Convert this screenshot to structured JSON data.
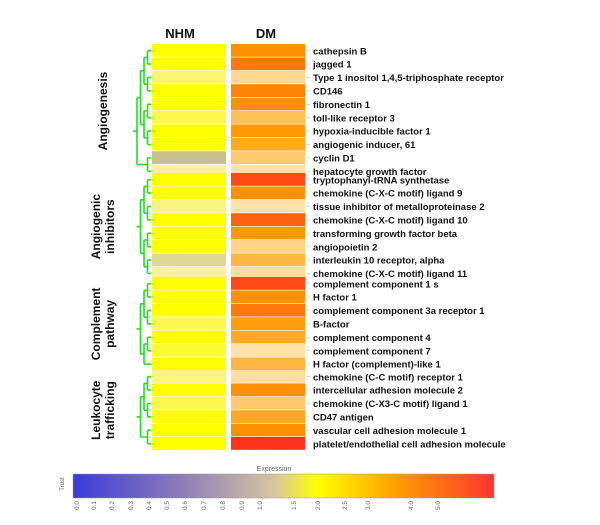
{
  "chart_data": {
    "type": "heatmap",
    "columns": [
      "NHM",
      "DM"
    ],
    "groups": [
      {
        "name": "Angiogenesis",
        "rows": [
          {
            "gene": "cathepsin B",
            "values": [
              1.0,
              3.0
            ]
          },
          {
            "gene": "jagged 1",
            "values": [
              1.0,
              3.5
            ]
          },
          {
            "gene": "Type 1 inositol 1,4,5-triphosphate receptor",
            "values": [
              0.93,
              1.5
            ]
          },
          {
            "gene": "CD146",
            "values": [
              1.0,
              3.2
            ]
          },
          {
            "gene": "fibronectin 1",
            "values": [
              1.0,
              3.0
            ]
          },
          {
            "gene": "toll-like receptor 3",
            "values": [
              0.95,
              2.0
            ]
          },
          {
            "gene": "hypoxia-inducible factor 1",
            "values": [
              1.05,
              2.8
            ]
          },
          {
            "gene": "angiogenic inducer, 61",
            "values": [
              1.0,
              2.5
            ]
          },
          {
            "gene": "cyclin D1",
            "values": [
              0.8,
              1.8
            ]
          },
          {
            "gene": "hepatocyte growth factor",
            "values": [
              0.9,
              1.3
            ]
          }
        ]
      },
      {
        "name": "Angiogenic inhibitors",
        "rows": [
          {
            "gene": "tryptophanyl-tRNA synthetase",
            "values": [
              1.0,
              4.5
            ]
          },
          {
            "gene": "chemokine (C-X-C motif) ligand 9",
            "values": [
              1.0,
              3.0
            ]
          },
          {
            "gene": "tissue inhibitor of metalloproteinase 2",
            "values": [
              0.92,
              1.3
            ]
          },
          {
            "gene": "chemokine (C-X-C motif) ligand 10",
            "values": [
              1.0,
              4.0
            ]
          },
          {
            "gene": "transforming growth factor  beta",
            "values": [
              1.0,
              2.8
            ]
          },
          {
            "gene": "angiopoietin 2",
            "values": [
              1.0,
              1.6
            ]
          },
          {
            "gene": "interleukin 10 receptor, alpha",
            "values": [
              0.85,
              2.2
            ]
          },
          {
            "gene": "chemokine (C-X-C motif) ligand 11",
            "values": [
              0.9,
              1.4
            ]
          }
        ]
      },
      {
        "name": "Complement pathway",
        "rows": [
          {
            "gene": "complement component 1  s",
            "values": [
              1.0,
              4.5
            ]
          },
          {
            "gene": "H factor 1",
            "values": [
              1.0,
              3.0
            ]
          },
          {
            "gene": "complement component 3a receptor 1",
            "values": [
              1.0,
              3.5
            ]
          },
          {
            "gene": "B-factor",
            "values": [
              0.95,
              2.7
            ]
          },
          {
            "gene": "complement component 4",
            "values": [
              1.0,
              2.5
            ]
          },
          {
            "gene": "complement component 7",
            "values": [
              0.97,
              1.3
            ]
          },
          {
            "gene": "H factor (complement)-like 1",
            "values": [
              1.0,
              2.2
            ]
          }
        ]
      },
      {
        "name": "Leukocyte trafficking",
        "rows": [
          {
            "gene": "chemokine (C-C motif) receptor 1",
            "values": [
              0.92,
              1.35
            ]
          },
          {
            "gene": "intercellular adhesion molecule 2",
            "values": [
              1.0,
              3.0
            ]
          },
          {
            "gene": "chemokine (C-X3-C motif) ligand 1",
            "values": [
              0.95,
              1.8
            ]
          },
          {
            "gene": "CD47 antigen",
            "values": [
              1.0,
              2.5
            ]
          },
          {
            "gene": "vascular cell adhesion molecule 1",
            "values": [
              1.0,
              3.0
            ]
          },
          {
            "gene": "platelet/endothelial cell adhesion molecule",
            "values": [
              1.0,
              5.0
            ]
          }
        ]
      }
    ],
    "colorbar": {
      "title": "Expression",
      "side_label": "Trust",
      "ticks": [
        "0.0",
        "0.1",
        "0.2",
        "0.3",
        "0.4",
        "0.5",
        "0.6",
        "0.7",
        "0.8",
        "0.9",
        "1.0",
        "1.5",
        "2.0",
        "2.5",
        "3.0",
        "4.0",
        "5.0"
      ],
      "colors": [
        "#3b3bd9",
        "#8a7ab8",
        "#d8c6a0",
        "#ffff00",
        "#ff9900",
        "#ff3333"
      ]
    }
  }
}
